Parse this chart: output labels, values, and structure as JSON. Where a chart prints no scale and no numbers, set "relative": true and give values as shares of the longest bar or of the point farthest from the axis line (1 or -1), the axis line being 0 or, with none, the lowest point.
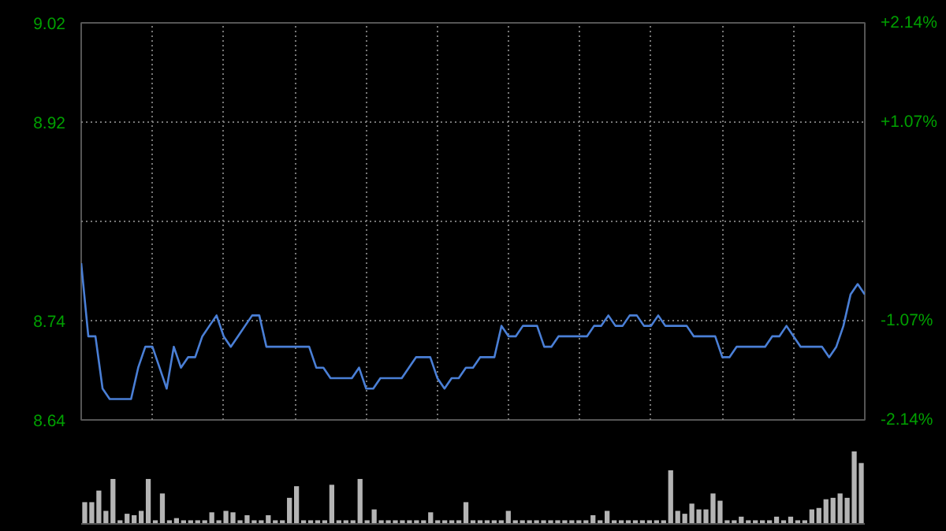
{
  "chart_data": [
    {
      "type": "line",
      "grid": true,
      "categories": [
        null,
        null,
        null,
        null,
        null,
        null,
        null,
        null,
        null,
        null,
        null,
        null,
        null,
        null,
        null,
        null,
        null,
        null,
        null,
        null,
        null,
        null,
        null,
        null,
        null,
        null,
        null,
        null,
        null,
        null,
        null,
        null,
        null,
        null,
        null,
        null,
        null,
        null,
        null,
        null,
        null,
        null,
        null,
        null,
        null,
        null,
        null,
        null,
        null,
        null,
        null,
        null,
        null,
        null,
        null,
        null,
        null,
        null,
        null,
        null,
        null,
        null,
        null,
        null,
        null,
        null,
        null,
        null,
        null,
        null,
        null,
        null,
        null,
        null,
        null,
        null,
        null,
        null,
        null,
        null,
        null,
        null,
        null,
        null,
        null,
        null,
        null,
        null,
        null,
        null,
        null,
        null,
        null,
        null,
        null,
        null,
        null,
        null,
        null,
        null,
        null,
        null,
        null,
        null,
        null,
        null,
        null,
        null,
        null,
        null,
        null
      ],
      "series": [
        {
          "color": "#4a7fd6",
          "values": [
            8.79,
            8.72,
            8.72,
            8.67,
            8.66,
            8.66,
            8.66,
            8.66,
            8.69,
            8.71,
            8.71,
            8.69,
            8.67,
            8.71,
            8.69,
            8.7,
            8.7,
            8.72,
            8.73,
            8.74,
            8.72,
            8.71,
            8.72,
            8.73,
            8.74,
            8.74,
            8.71,
            8.71,
            8.71,
            8.71,
            8.71,
            8.71,
            8.71,
            8.69,
            8.69,
            8.68,
            8.68,
            8.68,
            8.68,
            8.69,
            8.67,
            8.67,
            8.68,
            8.68,
            8.68,
            8.68,
            8.69,
            8.7,
            8.7,
            8.7,
            8.68,
            8.67,
            8.68,
            8.68,
            8.69,
            8.69,
            8.7,
            8.7,
            8.7,
            8.73,
            8.72,
            8.72,
            8.73,
            8.73,
            8.73,
            8.71,
            8.71,
            8.72,
            8.72,
            8.72,
            8.72,
            8.72,
            8.73,
            8.73,
            8.74,
            8.73,
            8.73,
            8.74,
            8.74,
            8.73,
            8.73,
            8.74,
            8.73,
            8.73,
            8.73,
            8.73,
            8.72,
            8.72,
            8.72,
            8.72,
            8.7,
            8.7,
            8.71,
            8.71,
            8.71,
            8.71,
            8.71,
            8.72,
            8.72,
            8.73,
            8.72,
            8.71,
            8.71,
            8.71,
            8.71,
            8.7,
            8.71,
            8.73,
            8.76,
            8.77,
            8.76
          ]
        }
      ],
      "ylim": [
        8.64,
        9.02
      ],
      "yticks": [
        {
          "value": 8.64,
          "label": "8.64"
        },
        {
          "value": 8.735,
          "label": "8.74"
        },
        {
          "value": 8.83,
          "label": null
        },
        {
          "value": 8.925,
          "label": "8.92"
        },
        {
          "value": 9.02,
          "label": "9.02"
        }
      ],
      "y2lim": [
        -2.14,
        2.14
      ],
      "y2ticks": [
        {
          "value": -2.14,
          "label": "-2.14%"
        },
        {
          "value": -1.07,
          "label": "-1.07%"
        },
        {
          "value": 0,
          "label": null
        },
        {
          "value": 1.07,
          "label": "+1.07%"
        },
        {
          "value": 2.14,
          "label": "+2.14%"
        }
      ]
    },
    {
      "type": "bar",
      "relative": true,
      "color": "#b4b4b4",
      "categories": [
        null,
        null,
        null,
        null,
        null,
        null,
        null,
        null,
        null,
        null,
        null,
        null,
        null,
        null,
        null,
        null,
        null,
        null,
        null,
        null,
        null,
        null,
        null,
        null,
        null,
        null,
        null,
        null,
        null,
        null,
        null,
        null,
        null,
        null,
        null,
        null,
        null,
        null,
        null,
        null,
        null,
        null,
        null,
        null,
        null,
        null,
        null,
        null,
        null,
        null,
        null,
        null,
        null,
        null,
        null,
        null,
        null,
        null,
        null,
        null,
        null,
        null,
        null,
        null,
        null,
        null,
        null,
        null,
        null,
        null,
        null,
        null,
        null,
        null,
        null,
        null,
        null,
        null,
        null,
        null,
        null,
        null,
        null,
        null,
        null,
        null,
        null,
        null,
        null,
        null,
        null,
        null,
        null,
        null,
        null,
        null,
        null,
        null,
        null,
        null,
        null,
        null,
        null,
        null,
        null,
        null,
        null,
        null,
        null,
        null,
        null
      ],
      "values": [
        0.3,
        0.3,
        0.46,
        0.18,
        0.62,
        0.05,
        0.14,
        0.12,
        0.18,
        0.62,
        0.05,
        0.42,
        0.05,
        0.08,
        0.05,
        0.05,
        0.05,
        0.05,
        0.16,
        0.05,
        0.18,
        0.16,
        0.05,
        0.12,
        0.05,
        0.05,
        0.12,
        0.05,
        0.05,
        0.36,
        0.52,
        0.05,
        0.05,
        0.05,
        0.05,
        0.54,
        0.05,
        0.05,
        0.05,
        0.62,
        0.05,
        0.2,
        0.05,
        0.05,
        0.05,
        0.05,
        0.05,
        0.05,
        0.05,
        0.16,
        0.05,
        0.05,
        0.05,
        0.05,
        0.3,
        0.05,
        0.05,
        0.05,
        0.05,
        0.05,
        0.18,
        0.05,
        0.05,
        0.05,
        0.05,
        0.05,
        0.05,
        0.05,
        0.05,
        0.05,
        0.05,
        0.05,
        0.12,
        0.05,
        0.18,
        0.05,
        0.05,
        0.05,
        0.05,
        0.05,
        0.05,
        0.05,
        0.05,
        0.74,
        0.18,
        0.14,
        0.28,
        0.2,
        0.2,
        0.42,
        0.32,
        0.05,
        0.05,
        0.1,
        0.05,
        0.05,
        0.05,
        0.05,
        0.1,
        0.05,
        0.1,
        0.05,
        0.05,
        0.2,
        0.22,
        0.34,
        0.36,
        0.42,
        0.36,
        1.0,
        0.84
      ]
    }
  ]
}
